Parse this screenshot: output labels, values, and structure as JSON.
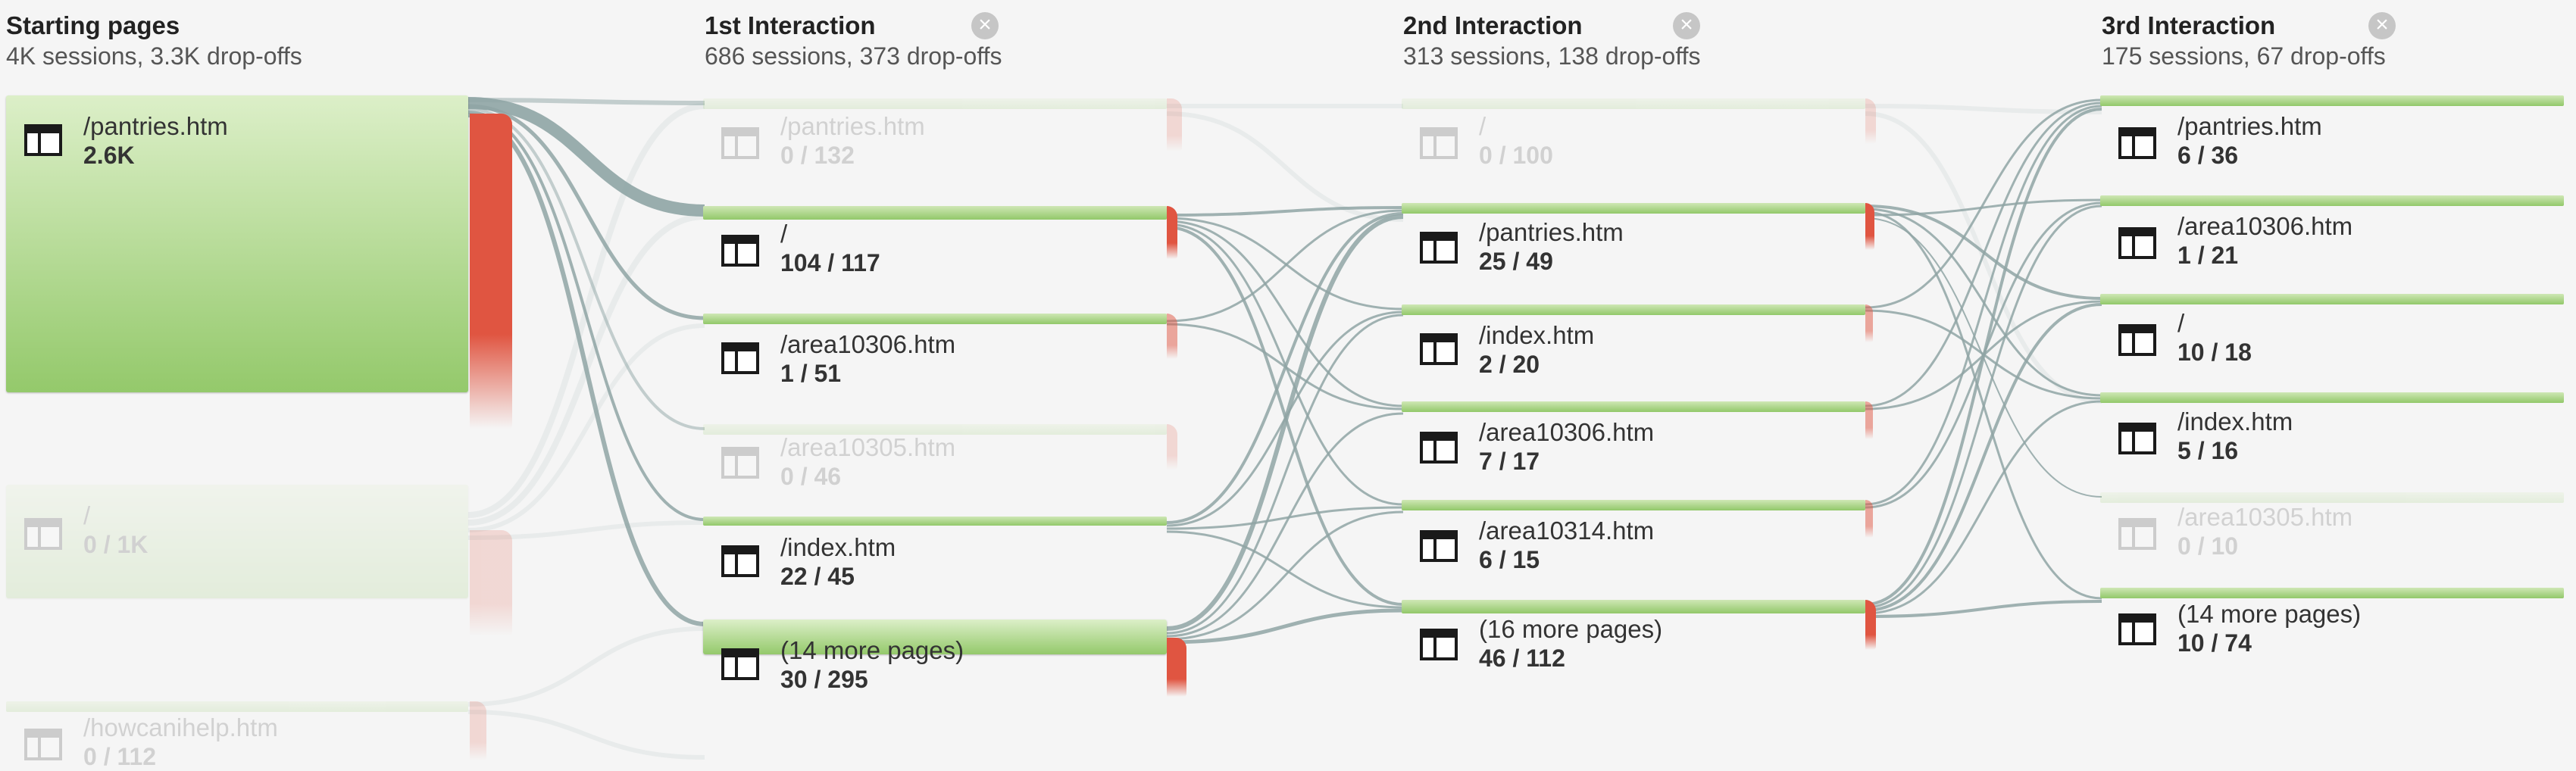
{
  "columns": [
    {
      "title": "Starting pages",
      "subtitle": "4K sessions, 3.3K drop-offs",
      "closable": false
    },
    {
      "title": "1st Interaction",
      "subtitle": "686 sessions, 373 drop-offs",
      "closable": true
    },
    {
      "title": "2nd Interaction",
      "subtitle": "313 sessions, 138 drop-offs",
      "closable": true
    },
    {
      "title": "3rd Interaction",
      "subtitle": "175 sessions, 67 drop-offs",
      "closable": true
    }
  ],
  "nodes": [
    [
      {
        "label": "/pantries.htm",
        "count": "2.6K",
        "faded": false
      },
      {
        "label": "/",
        "count": "0 / 1K",
        "faded": true
      },
      {
        "label": "/howcanihelp.htm",
        "count": "0 / 112",
        "faded": true
      }
    ],
    [
      {
        "label": "/pantries.htm",
        "count": "0 / 132",
        "faded": true
      },
      {
        "label": "/",
        "count": "104 / 117",
        "faded": false
      },
      {
        "label": "/area10306.htm",
        "count": "1 / 51",
        "faded": false
      },
      {
        "label": "/area10305.htm",
        "count": "0 / 46",
        "faded": true
      },
      {
        "label": "/index.htm",
        "count": "22 / 45",
        "faded": false
      },
      {
        "label": "(14 more pages)",
        "count": "30 / 295",
        "faded": false
      }
    ],
    [
      {
        "label": "/",
        "count": "0 / 100",
        "faded": true
      },
      {
        "label": "/pantries.htm",
        "count": "25 / 49",
        "faded": false
      },
      {
        "label": "/index.htm",
        "count": "2 / 20",
        "faded": false
      },
      {
        "label": "/area10306.htm",
        "count": "7 / 17",
        "faded": false
      },
      {
        "label": "/area10314.htm",
        "count": "6 / 15",
        "faded": false
      },
      {
        "label": "(16 more pages)",
        "count": "46 / 112",
        "faded": false
      }
    ],
    [
      {
        "label": "/pantries.htm",
        "count": "6 / 36",
        "faded": false
      },
      {
        "label": "/area10306.htm",
        "count": "1 / 21",
        "faded": false
      },
      {
        "label": "/",
        "count": "10 / 18",
        "faded": false
      },
      {
        "label": "/index.htm",
        "count": "5 / 16",
        "faded": false
      },
      {
        "label": "/area10305.htm",
        "count": "0 / 10",
        "faded": true
      },
      {
        "label": "(14 more pages)",
        "count": "10 / 74",
        "faded": false
      }
    ]
  ],
  "icons": {
    "node": "page-table-icon",
    "close": "close-circle-icon"
  },
  "colors": {
    "node_green": "#94c96b",
    "drop_off_red": "#e05541",
    "link_gray": "#8fa5a5",
    "background": "#f5f5f5"
  }
}
